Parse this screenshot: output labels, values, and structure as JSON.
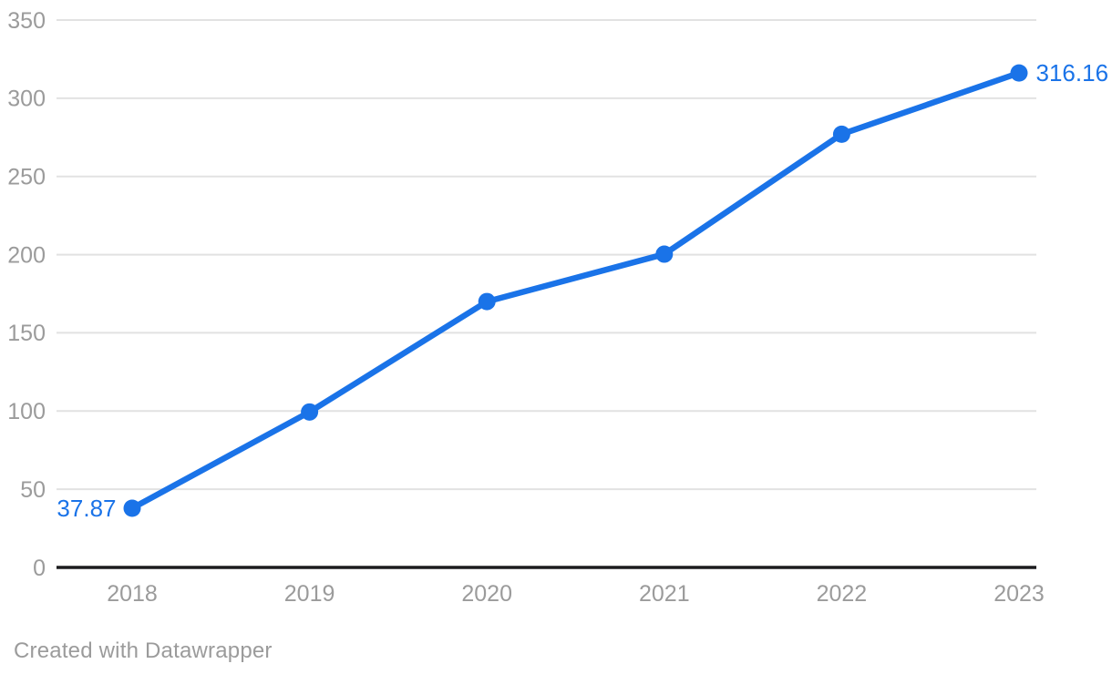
{
  "chart_data": {
    "type": "line",
    "x": [
      "2018",
      "2019",
      "2020",
      "2021",
      "2022",
      "2023"
    ],
    "values": [
      37.87,
      99.4,
      170,
      200.3,
      277,
      316.16
    ],
    "title": "",
    "xlabel": "",
    "ylabel": "",
    "ylim": [
      0,
      350
    ],
    "ytick_values": [
      0,
      50,
      100,
      150,
      200,
      250,
      300,
      350
    ],
    "ytick_labels": [
      "0",
      "50",
      "100",
      "150",
      "200",
      "250",
      "300",
      "350"
    ],
    "grid": true,
    "legend": "none",
    "point_labels": [
      {
        "index": 0,
        "text": "37.87",
        "side": "left"
      },
      {
        "index": 5,
        "text": "316.16",
        "side": "right"
      }
    ],
    "colors": {
      "line": "#1a73e8",
      "point": "#1a73e8",
      "value_label": "#1a73e8",
      "gridline": "#e2e2e2",
      "baseline": "#1c1c1e",
      "axis_text": "#9b9b9b"
    }
  },
  "footer": {
    "credit": "Created with Datawrapper"
  }
}
